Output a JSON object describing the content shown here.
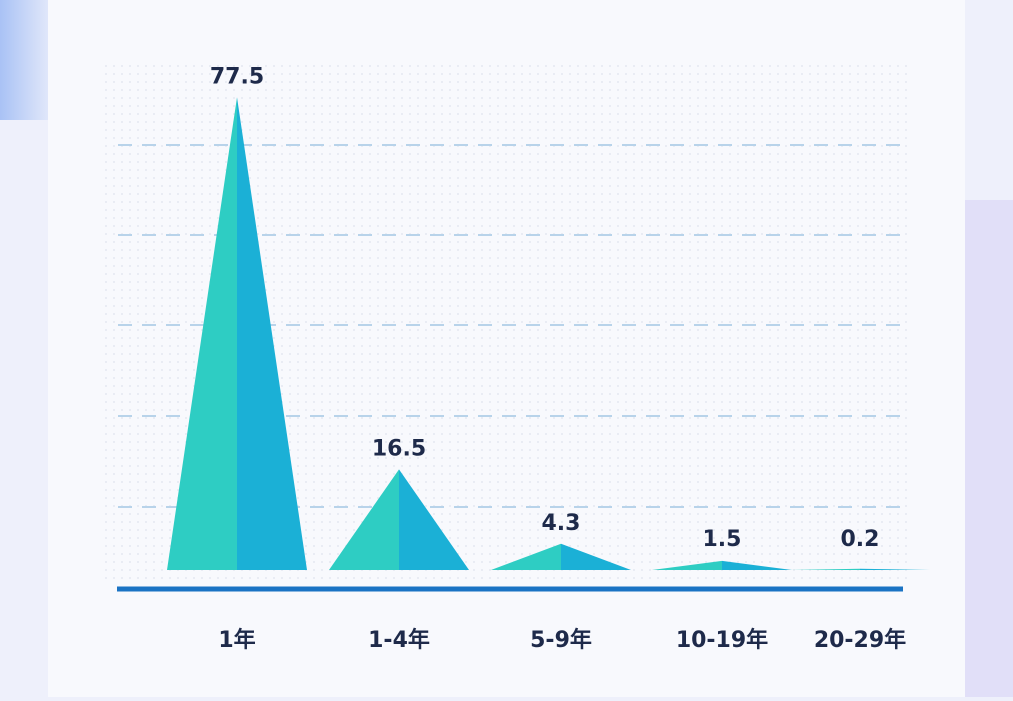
{
  "chart_data": {
    "type": "triangle-bar",
    "categories": [
      "1年",
      "1-4年",
      "5-9年",
      "10-19年",
      "20-29年"
    ],
    "values": [
      77.5,
      16.5,
      4.3,
      1.5,
      0.2
    ],
    "colors": [
      "#2ecdc3",
      "#1bb0d6"
    ],
    "ylim": [
      0,
      80
    ]
  }
}
